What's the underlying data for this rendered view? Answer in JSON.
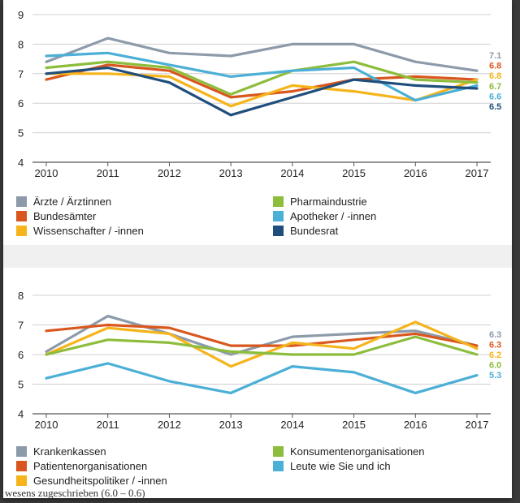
{
  "chart_data": [
    {
      "type": "line",
      "x": [
        "2010",
        "2011",
        "2012",
        "2013",
        "2014",
        "2015",
        "2016",
        "2017"
      ],
      "ylim": [
        4,
        9
      ],
      "yticks": [
        "4",
        "5",
        "6",
        "7",
        "8",
        "9"
      ],
      "series": [
        {
          "name": "Ärzte / Ärztinnen",
          "color": "#8c9aaa",
          "values": [
            7.4,
            8.2,
            7.7,
            7.6,
            8.0,
            8.0,
            7.4,
            7.1
          ],
          "end_label": "7.1"
        },
        {
          "name": "Bundesämter",
          "color": "#d9571e",
          "values": [
            6.8,
            7.3,
            7.1,
            6.2,
            6.4,
            6.8,
            6.9,
            6.8
          ],
          "end_label": "6.8"
        },
        {
          "name": "Wissenschafter / -innen",
          "color": "#f5b41b",
          "values": [
            7.0,
            7.0,
            6.9,
            5.9,
            6.6,
            6.4,
            6.1,
            6.8
          ],
          "end_label": "6.8"
        },
        {
          "name": "Pharmaindustrie",
          "color": "#8dbd3c",
          "values": [
            7.2,
            7.4,
            7.2,
            6.3,
            7.1,
            7.4,
            6.8,
            6.7
          ],
          "end_label": "6.7"
        },
        {
          "name": "Apotheker / -innen",
          "color": "#4bafd6",
          "values": [
            7.6,
            7.7,
            7.3,
            6.9,
            7.1,
            7.2,
            6.1,
            6.6
          ],
          "end_label": "6.6"
        },
        {
          "name": "Bundesrat",
          "color": "#1f4e7d",
          "values": [
            7.0,
            7.2,
            6.7,
            5.6,
            6.2,
            6.8,
            6.6,
            6.5
          ],
          "end_label": "6.5"
        }
      ]
    },
    {
      "type": "line",
      "x": [
        "2010",
        "2011",
        "2012",
        "2013",
        "2014",
        "2015",
        "2016",
        "2017"
      ],
      "ylim": [
        4,
        8
      ],
      "yticks": [
        "4",
        "5",
        "6",
        "7",
        "8"
      ],
      "series": [
        {
          "name": "Krankenkassen",
          "color": "#8c9aaa",
          "values": [
            6.1,
            7.3,
            6.7,
            6.0,
            6.6,
            6.7,
            6.8,
            6.3
          ],
          "end_label": "6.3"
        },
        {
          "name": "Patientenorganisationen",
          "color": "#d9571e",
          "values": [
            6.8,
            7.0,
            6.9,
            6.3,
            6.3,
            6.5,
            6.7,
            6.3
          ],
          "end_label": "6.3"
        },
        {
          "name": "Gesundheitspolitiker / -innen",
          "color": "#f5b41b",
          "values": [
            6.0,
            6.9,
            6.7,
            5.6,
            6.4,
            6.2,
            7.1,
            6.2
          ],
          "end_label": "6.2"
        },
        {
          "name": "Konsumentenorganisationen",
          "color": "#8dbd3c",
          "values": [
            6.0,
            6.5,
            6.4,
            6.1,
            6.0,
            6.0,
            6.6,
            6.0
          ],
          "end_label": "6.0"
        },
        {
          "name": "Leute wie Sie und ich",
          "color": "#4bafd6",
          "values": [
            5.2,
            5.7,
            5.1,
            4.7,
            5.6,
            5.4,
            4.7,
            5.3
          ],
          "end_label": "5.3"
        }
      ]
    }
  ],
  "footer_text": "wesens zugeschrieben (6.0 – 0.6)"
}
